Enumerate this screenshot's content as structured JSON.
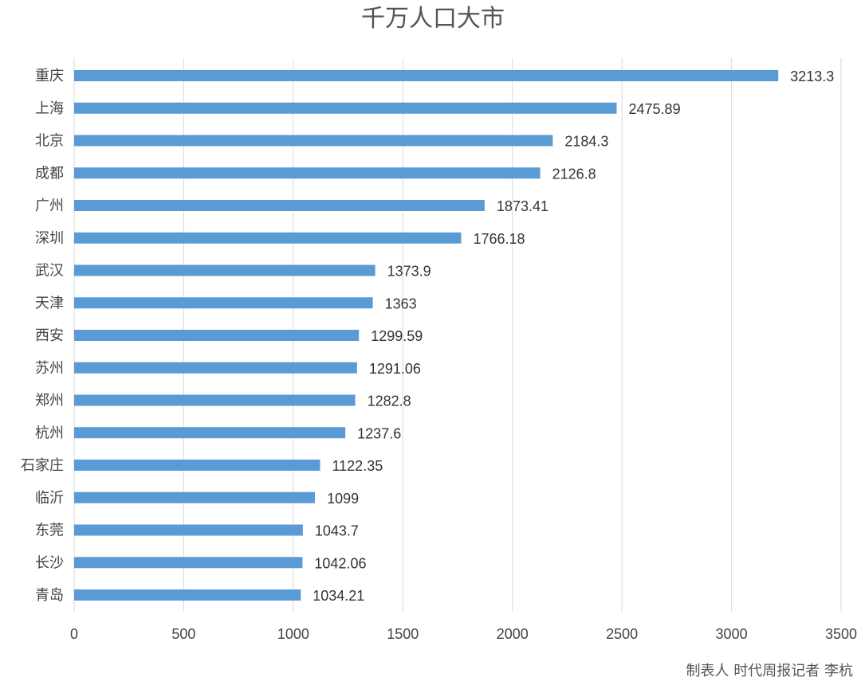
{
  "chart_data": {
    "type": "bar",
    "orientation": "horizontal",
    "title": "千万人口大市",
    "categories": [
      "重庆",
      "上海",
      "北京",
      "成都",
      "广州",
      "深圳",
      "武汉",
      "天津",
      "西安",
      "苏州",
      "郑州",
      "杭州",
      "石家庄",
      "临沂",
      "东莞",
      "长沙",
      "青岛"
    ],
    "values": [
      3213.3,
      2475.89,
      2184.3,
      2126.8,
      1873.41,
      1766.18,
      1373.9,
      1363,
      1299.59,
      1291.06,
      1282.8,
      1237.6,
      1122.35,
      1099,
      1043.7,
      1042.06,
      1034.21
    ],
    "value_labels": [
      "3213.3",
      "2475.89",
      "2184.3",
      "2126.8",
      "1873.41",
      "1766.18",
      "1373.9",
      "1363",
      "1299.59",
      "1291.06",
      "1282.8",
      "1237.6",
      "1122.35",
      "1099",
      "1043.7",
      "1042.06",
      "1034.21"
    ],
    "xlim": [
      0,
      3500
    ],
    "xticks": [
      "0",
      "500",
      "1000",
      "1500",
      "2000",
      "2500",
      "3000",
      "3500"
    ],
    "xlabel": "",
    "ylabel": "",
    "grid": "vertical",
    "legend": "none",
    "bar_color": "#5b9bd5",
    "grid_color": "#d9d9d9"
  },
  "credit": "制表人 时代周报记者 李杭"
}
